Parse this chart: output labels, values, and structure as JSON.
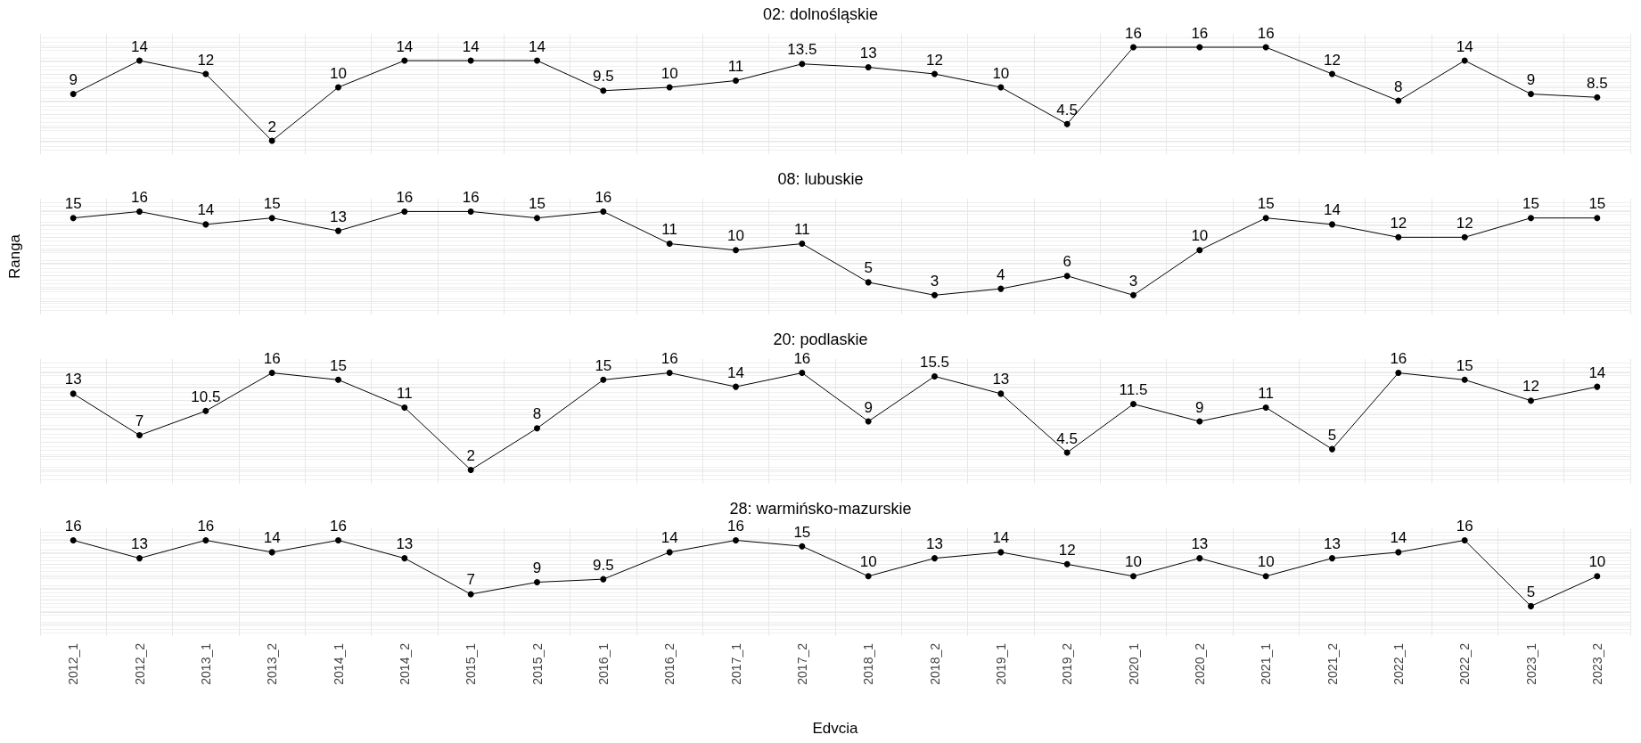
{
  "chart_data": [
    {
      "type": "line",
      "title": "02: dolnośląskie",
      "categories": [
        null,
        null,
        null,
        null,
        null,
        null,
        null,
        null,
        null,
        null,
        null,
        null,
        null,
        null,
        null,
        null,
        null,
        null,
        null,
        null,
        null,
        null,
        null,
        null
      ],
      "series": [
        {
          "color": "#000000",
          "values": [
            9,
            14,
            12,
            2,
            10,
            14,
            14,
            14,
            9.5,
            10,
            11,
            13.5,
            13,
            12,
            10,
            4.5,
            16,
            16,
            16,
            12,
            8,
            14,
            9,
            8.5
          ]
        }
      ],
      "ylim": [
        0,
        18
      ],
      "yticks": [
        {
          "value": 2,
          "label": null
        },
        {
          "value": 4,
          "label": null
        },
        {
          "value": 6,
          "label": null
        },
        {
          "value": 8,
          "label": null
        },
        {
          "value": 10,
          "label": null
        },
        {
          "value": 12,
          "label": null
        },
        {
          "value": 14,
          "label": null
        },
        {
          "value": 16,
          "label": null
        }
      ],
      "tick_labels": false,
      "grid": true,
      "marker": "circle",
      "line_style": "solid",
      "data_labels": true
    },
    {
      "type": "line",
      "title": "08: lubuskie",
      "ylabel": "Ranga",
      "categories": [
        null,
        null,
        null,
        null,
        null,
        null,
        null,
        null,
        null,
        null,
        null,
        null,
        null,
        null,
        null,
        null,
        null,
        null,
        null,
        null,
        null,
        null,
        null,
        null
      ],
      "series": [
        {
          "color": "#000000",
          "values": [
            15,
            16,
            14,
            15,
            13,
            16,
            16,
            15,
            16,
            11,
            10,
            11,
            5,
            3,
            4,
            6,
            3,
            10,
            15,
            14,
            12,
            12,
            15,
            15
          ]
        }
      ],
      "ylim": [
        0,
        18
      ],
      "yticks": [
        {
          "value": 2,
          "label": null
        },
        {
          "value": 4,
          "label": null
        },
        {
          "value": 6,
          "label": null
        },
        {
          "value": 8,
          "label": null
        },
        {
          "value": 10,
          "label": null
        },
        {
          "value": 12,
          "label": null
        },
        {
          "value": 14,
          "label": null
        },
        {
          "value": 16,
          "label": null
        }
      ],
      "tick_labels": false,
      "grid": true,
      "marker": "circle",
      "line_style": "solid",
      "data_labels": true
    },
    {
      "type": "line",
      "title": "20: podlaskie",
      "categories": [
        null,
        null,
        null,
        null,
        null,
        null,
        null,
        null,
        null,
        null,
        null,
        null,
        null,
        null,
        null,
        null,
        null,
        null,
        null,
        null,
        null,
        null,
        null,
        null
      ],
      "series": [
        {
          "color": "#000000",
          "values": [
            13,
            7,
            10.5,
            16,
            15,
            11,
            2,
            8,
            15,
            16,
            14,
            16,
            9,
            15.5,
            13,
            4.5,
            11.5,
            9,
            11,
            5,
            16,
            15,
            12,
            14
          ]
        }
      ],
      "ylim": [
        0,
        18
      ],
      "yticks": [
        {
          "value": 2,
          "label": null
        },
        {
          "value": 4,
          "label": null
        },
        {
          "value": 6,
          "label": null
        },
        {
          "value": 8,
          "label": null
        },
        {
          "value": 10,
          "label": null
        },
        {
          "value": 12,
          "label": null
        },
        {
          "value": 14,
          "label": null
        },
        {
          "value": 16,
          "label": null
        }
      ],
      "tick_labels": false,
      "grid": true,
      "marker": "circle",
      "line_style": "solid",
      "data_labels": true
    },
    {
      "type": "line",
      "title": "28: warmińsko-mazurskie",
      "xlabel": "Edvcia",
      "categories": [
        "2012_1",
        "2012_2",
        "2013_1",
        "2013_2",
        "2014_1",
        "2014_2",
        "2015_1",
        "2015_2",
        "2016_1",
        "2016_2",
        "2017_1",
        "2017_2",
        "2018_1",
        "2018_2",
        "2019_1",
        "2019_2",
        "2020_1",
        "2020_2",
        "2021_1",
        "2021_2",
        "2022_1",
        "2022_2",
        "2023_1",
        "2023_2"
      ],
      "series": [
        {
          "color": "#000000",
          "values": [
            16,
            13,
            16,
            14,
            16,
            13,
            7,
            9,
            9.5,
            14,
            16,
            15,
            10,
            13,
            14,
            12,
            10,
            13,
            10,
            13,
            14,
            16,
            5,
            10
          ]
        }
      ],
      "ylim": [
        0,
        18
      ],
      "yticks": [
        {
          "value": 2,
          "label": null
        },
        {
          "value": 4,
          "label": null
        },
        {
          "value": 6,
          "label": null
        },
        {
          "value": 8,
          "label": null
        },
        {
          "value": 10,
          "label": null
        },
        {
          "value": 12,
          "label": null
        },
        {
          "value": 14,
          "label": null
        },
        {
          "value": 16,
          "label": null
        }
      ],
      "tick_labels": "x",
      "grid": true,
      "marker": "circle",
      "line_style": "solid",
      "data_labels": true
    }
  ]
}
